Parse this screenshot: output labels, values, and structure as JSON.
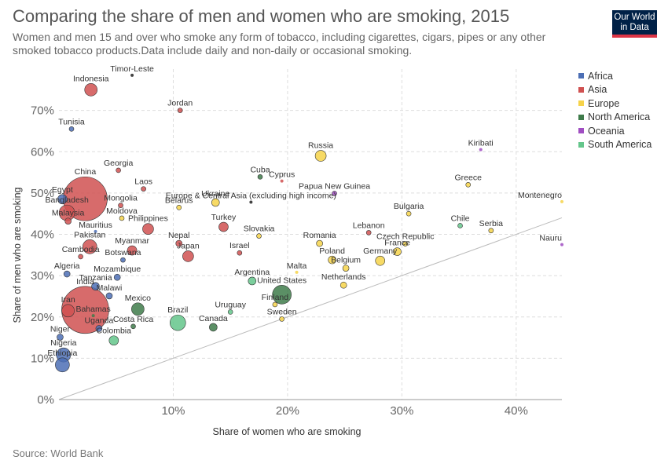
{
  "header": {
    "title": "Comparing the share of men and women who are smoking, 2015",
    "subtitle": "Women and men 15 and over who smoke any form of tobacco, including cigarettes, cigars, pipes or any other smoked tobacco products.Data include daily and non-daily or occasional smoking.",
    "logo_line1": "Our World",
    "logo_line2": "in Data"
  },
  "source": "Source: World Bank",
  "colors": {
    "Africa": "#4c6fb5",
    "Asia": "#d05151",
    "Europe": "#f6d34a",
    "North America": "#3e7b4a",
    "Oceania": "#a04ec2",
    "South America": "#64c68b",
    "unassigned": "#222222"
  },
  "chart_data": {
    "type": "scatter",
    "title": "Comparing the share of men and women who are smoking, 2015",
    "xlabel": "Share of women who are smoking",
    "ylabel": "Share of men who are smoking",
    "xlim": [
      0,
      44
    ],
    "ylim": [
      0,
      80
    ],
    "xticks": [
      10,
      20,
      30,
      40
    ],
    "xtick_labels": [
      "10%",
      "20%",
      "30%",
      "40%"
    ],
    "yticks": [
      0,
      10,
      20,
      30,
      40,
      50,
      60,
      70
    ],
    "ytick_labels": [
      "0%",
      "10%",
      "20%",
      "30%",
      "40%",
      "50%",
      "60%",
      "70%"
    ],
    "grid": true,
    "legend_position": "right",
    "legend": [
      "Africa",
      "Asia",
      "Europe",
      "North America",
      "Oceania",
      "South America"
    ],
    "reference_line": "x = y",
    "points": [
      {
        "label": "Indonesia",
        "x": 2.8,
        "y": 75.0,
        "region": "Asia",
        "size": 8
      },
      {
        "label": "Timor-Leste",
        "x": 6.4,
        "y": 78.5,
        "region": "unassigned",
        "size": 2
      },
      {
        "label": "Jordan",
        "x": 10.6,
        "y": 70.0,
        "region": "Asia",
        "size": 3
      },
      {
        "label": "Tunisia",
        "x": 1.1,
        "y": 65.5,
        "region": "Africa",
        "size": 3
      },
      {
        "label": "Kiribati",
        "x": 36.9,
        "y": 60.5,
        "region": "Oceania",
        "size": 2
      },
      {
        "label": "Russia",
        "x": 22.9,
        "y": 59.0,
        "region": "Europe",
        "size": 7
      },
      {
        "label": "Georgia",
        "x": 5.2,
        "y": 55.5,
        "region": "Asia",
        "size": 3
      },
      {
        "label": "Cuba",
        "x": 17.6,
        "y": 53.9,
        "region": "North America",
        "size": 3
      },
      {
        "label": "Cyprus",
        "x": 19.5,
        "y": 52.9,
        "region": "Asia",
        "size": 2
      },
      {
        "label": "Greece",
        "x": 35.8,
        "y": 52.0,
        "region": "Europe",
        "size": 3
      },
      {
        "label": "Laos",
        "x": 7.4,
        "y": 51.0,
        "region": "Asia",
        "size": 3
      },
      {
        "label": "China",
        "x": 2.3,
        "y": 48.6,
        "region": "Asia",
        "size": 28
      },
      {
        "label": "Egypt",
        "x": 0.3,
        "y": 48.5,
        "region": "Africa",
        "size": 6
      },
      {
        "label": "Papua New Guinea",
        "x": 24.1,
        "y": 49.9,
        "region": "Oceania",
        "size": 3
      },
      {
        "label": "Montenegro",
        "x": 44.0,
        "y": 47.9,
        "region": "Europe",
        "size": 2
      },
      {
        "label": "Mongolia",
        "x": 5.4,
        "y": 47.0,
        "region": "Asia",
        "size": 3
      },
      {
        "label": "Belarus",
        "x": 10.5,
        "y": 46.5,
        "region": "Europe",
        "size": 3
      },
      {
        "label": "Ukraine",
        "x": 13.7,
        "y": 47.7,
        "region": "Europe",
        "size": 5
      },
      {
        "label": "Europe & Central Asia (excluding high income)",
        "x": 16.8,
        "y": 47.8,
        "region": "unassigned",
        "size": 2
      },
      {
        "label": "Bangladesh",
        "x": 0.7,
        "y": 45.2,
        "region": "Asia",
        "size": 10
      },
      {
        "label": "Bulgaria",
        "x": 30.6,
        "y": 45.0,
        "region": "Europe",
        "size": 3
      },
      {
        "label": "Moldova",
        "x": 5.5,
        "y": 43.9,
        "region": "Europe",
        "size": 3
      },
      {
        "label": "Malaysia",
        "x": 0.8,
        "y": 43.2,
        "region": "Asia",
        "size": 4
      },
      {
        "label": "Turkey",
        "x": 14.4,
        "y": 41.8,
        "region": "Asia",
        "size": 6
      },
      {
        "label": "Chile",
        "x": 35.1,
        "y": 42.1,
        "region": "South America",
        "size": 3
      },
      {
        "label": "Serbia",
        "x": 37.8,
        "y": 40.9,
        "region": "Europe",
        "size": 3
      },
      {
        "label": "Mauritius",
        "x": 3.2,
        "y": 40.7,
        "region": "Africa",
        "size": 2
      },
      {
        "label": "Philippines",
        "x": 7.8,
        "y": 41.3,
        "region": "Asia",
        "size": 7
      },
      {
        "label": "Lebanon",
        "x": 27.1,
        "y": 40.4,
        "region": "Asia",
        "size": 3
      },
      {
        "label": "Slovakia",
        "x": 17.5,
        "y": 39.6,
        "region": "Europe",
        "size": 3
      },
      {
        "label": "Nepal",
        "x": 10.5,
        "y": 37.8,
        "region": "Asia",
        "size": 4
      },
      {
        "label": "Pakistan",
        "x": 2.7,
        "y": 37.0,
        "region": "Asia",
        "size": 9
      },
      {
        "label": "Romania",
        "x": 22.8,
        "y": 37.8,
        "region": "Europe",
        "size": 4
      },
      {
        "label": "Czech Republic",
        "x": 30.3,
        "y": 37.7,
        "region": "Europe",
        "size": 3
      },
      {
        "label": "Nauru",
        "x": 44.0,
        "y": 37.5,
        "region": "Oceania",
        "size": 2
      },
      {
        "label": "Myanmar",
        "x": 6.4,
        "y": 36.1,
        "region": "Asia",
        "size": 6
      },
      {
        "label": "Israel",
        "x": 15.8,
        "y": 35.5,
        "region": "Asia",
        "size": 3
      },
      {
        "label": "France",
        "x": 29.6,
        "y": 35.8,
        "region": "Europe",
        "size": 5
      },
      {
        "label": "Cambodia",
        "x": 1.9,
        "y": 34.6,
        "region": "Asia",
        "size": 3
      },
      {
        "label": "Japan",
        "x": 11.3,
        "y": 34.7,
        "region": "Asia",
        "size": 7
      },
      {
        "label": "Botswana",
        "x": 5.6,
        "y": 33.8,
        "region": "Africa",
        "size": 3
      },
      {
        "label": "Poland",
        "x": 23.9,
        "y": 33.8,
        "region": "Europe",
        "size": 5
      },
      {
        "label": "Germany",
        "x": 28.1,
        "y": 33.6,
        "region": "Europe",
        "size": 6
      },
      {
        "label": "Belgium",
        "x": 25.1,
        "y": 31.8,
        "region": "Europe",
        "size": 4
      },
      {
        "label": "Malta",
        "x": 20.8,
        "y": 30.8,
        "region": "Europe",
        "size": 2
      },
      {
        "label": "Algeria",
        "x": 0.7,
        "y": 30.4,
        "region": "Africa",
        "size": 4
      },
      {
        "label": "Mozambique",
        "x": 5.1,
        "y": 29.6,
        "region": "Africa",
        "size": 4
      },
      {
        "label": "Tanzania",
        "x": 3.2,
        "y": 27.4,
        "region": "Africa",
        "size": 5
      },
      {
        "label": "Argentina",
        "x": 16.9,
        "y": 28.7,
        "region": "South America",
        "size": 5
      },
      {
        "label": "Netherlands",
        "x": 24.9,
        "y": 27.7,
        "region": "Europe",
        "size": 4
      },
      {
        "label": "United States",
        "x": 19.5,
        "y": 25.4,
        "region": "North America",
        "size": 12
      },
      {
        "label": "Malawi",
        "x": 4.4,
        "y": 25.1,
        "region": "Africa",
        "size": 4
      },
      {
        "label": "India",
        "x": 2.3,
        "y": 21.7,
        "region": "Asia",
        "size": 30
      },
      {
        "label": "Finland",
        "x": 18.9,
        "y": 23.0,
        "region": "Europe",
        "size": 3
      },
      {
        "label": "Iran",
        "x": 0.8,
        "y": 21.5,
        "region": "Asia",
        "size": 8
      },
      {
        "label": "Mexico",
        "x": 6.9,
        "y": 21.9,
        "region": "North America",
        "size": 8
      },
      {
        "label": "Uruguay",
        "x": 15.0,
        "y": 21.2,
        "region": "South America",
        "size": 3
      },
      {
        "label": "Bahamas",
        "x": 3.0,
        "y": 20.3,
        "region": "North America",
        "size": 2
      },
      {
        "label": "Sweden",
        "x": 19.5,
        "y": 19.5,
        "region": "Europe",
        "size": 3
      },
      {
        "label": "Brazil",
        "x": 10.4,
        "y": 18.6,
        "region": "South America",
        "size": 10
      },
      {
        "label": "Costa Rica",
        "x": 6.5,
        "y": 17.7,
        "region": "North America",
        "size": 3
      },
      {
        "label": "Canada",
        "x": 13.5,
        "y": 17.5,
        "region": "North America",
        "size": 5
      },
      {
        "label": "Uganda",
        "x": 3.5,
        "y": 17.2,
        "region": "Africa",
        "size": 4
      },
      {
        "label": "Niger",
        "x": 0.1,
        "y": 15.1,
        "region": "Africa",
        "size": 4
      },
      {
        "label": "Colombia",
        "x": 4.8,
        "y": 14.3,
        "region": "South America",
        "size": 6
      },
      {
        "label": "Nigeria",
        "x": 0.4,
        "y": 10.8,
        "region": "Africa",
        "size": 9
      },
      {
        "label": "Ethiopia",
        "x": 0.3,
        "y": 8.4,
        "region": "Africa",
        "size": 9
      }
    ]
  }
}
